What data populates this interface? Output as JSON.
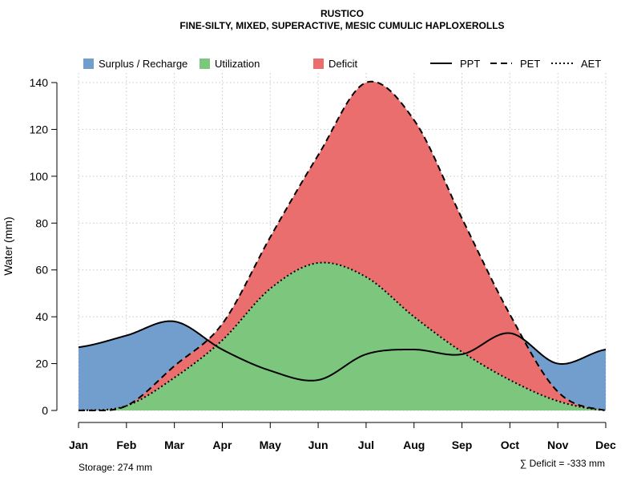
{
  "chart_data": {
    "type": "area",
    "title": "RUSTICO",
    "subtitle": "FINE-SILTY, MIXED, SUPERACTIVE, MESIC CUMULIC HAPLOXEROLLS",
    "xlabel": "",
    "ylabel": "Water (mm)",
    "ylim": [
      0,
      140
    ],
    "yticks": [
      0,
      20,
      40,
      60,
      80,
      100,
      120,
      140
    ],
    "categories": [
      "Jan",
      "Feb",
      "Mar",
      "Apr",
      "May",
      "Jun",
      "Jul",
      "Aug",
      "Sep",
      "Oct",
      "Nov",
      "Dec"
    ],
    "grid": true,
    "legend": {
      "position": "top",
      "fills": [
        {
          "name": "Surplus / Recharge",
          "color": "#729ECE"
        },
        {
          "name": "Utilization",
          "color": "#7DC67D"
        },
        {
          "name": "Deficit",
          "color": "#EA6E6E"
        }
      ],
      "lines": [
        {
          "name": "PPT",
          "style": "solid"
        },
        {
          "name": "PET",
          "style": "dashed"
        },
        {
          "name": "AET",
          "style": "dotted"
        }
      ]
    },
    "series": [
      {
        "name": "PPT",
        "values": [
          27,
          32,
          38,
          26,
          17,
          13,
          24,
          26,
          24,
          33,
          20,
          26
        ]
      },
      {
        "name": "PET",
        "values": [
          0,
          2,
          19,
          37,
          74,
          109,
          140,
          124,
          82,
          41,
          8,
          0
        ]
      },
      {
        "name": "AET",
        "values": [
          0,
          2,
          14,
          30,
          52,
          63,
          57,
          40,
          25,
          13,
          4,
          0
        ]
      }
    ],
    "annotations": {
      "storage": "Storage: 274 mm",
      "deficit": "∑ Deficit = -333 mm"
    }
  }
}
